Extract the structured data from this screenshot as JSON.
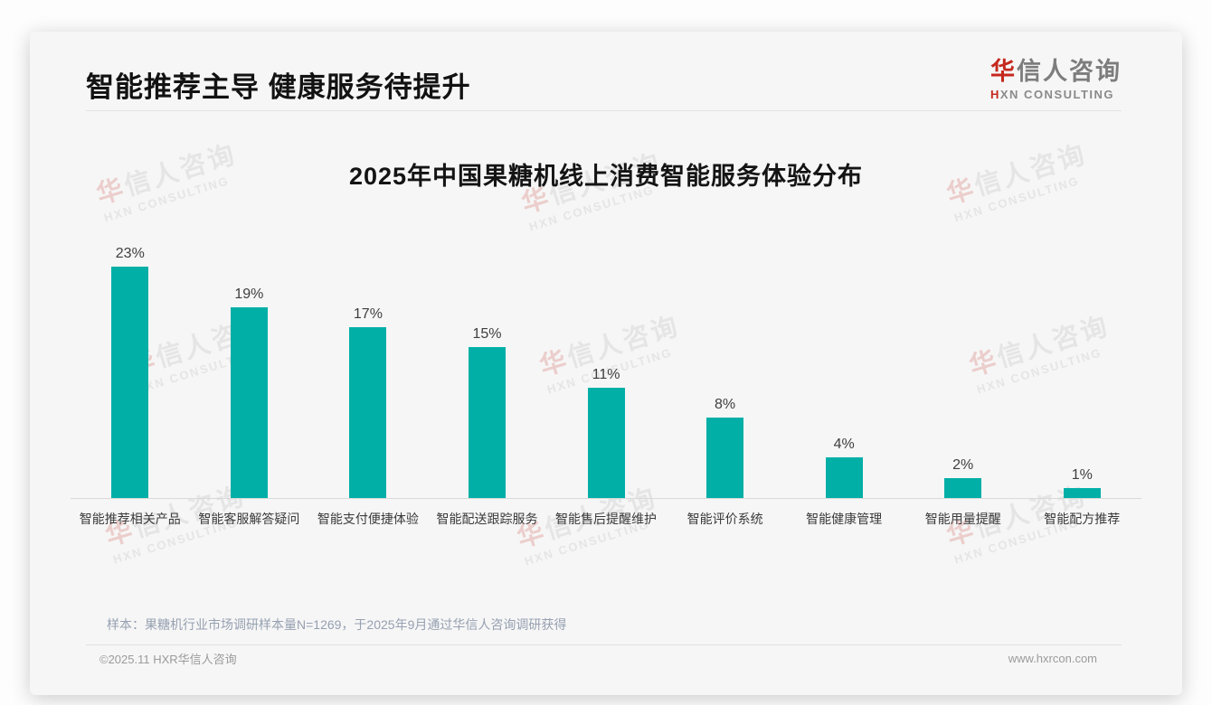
{
  "header": {
    "title": "智能推荐主导 健康服务待提升"
  },
  "logo": {
    "brand_first": "华",
    "brand_rest": "信人咨询",
    "sub_first": "H",
    "sub_rest": "XN CONSULTING"
  },
  "watermark": {
    "first": "华",
    "rest": "信人咨询",
    "line2": "HXN CONSULTING"
  },
  "chart_data": {
    "type": "bar",
    "title": "2025年中国果糖机线上消费智能服务体验分布",
    "categories": [
      "智能推荐相关产品",
      "智能客服解答疑问",
      "智能支付便捷体验",
      "智能配送跟踪服务",
      "智能售后提醒维护",
      "智能评价系统",
      "智能健康管理",
      "智能用量提醒",
      "智能配方推荐"
    ],
    "values": [
      23,
      19,
      17,
      15,
      11,
      8,
      4,
      2,
      1
    ],
    "unit": "%",
    "data_labels": [
      "23%",
      "19%",
      "17%",
      "15%",
      "11%",
      "8%",
      "4%",
      "2%",
      "1%"
    ],
    "bar_color": "#02afa7",
    "xlabel": "",
    "ylabel": "",
    "ylim": [
      0,
      25
    ],
    "grid": false,
    "legend": "none"
  },
  "note": {
    "sample_text": "样本：果糖机行业市场调研样本量N=1269，于2025年9月通过华信人咨询调研获得"
  },
  "footer": {
    "copyright": "©2025.11 HXR华信人咨询",
    "website": "www.hxrcon.com"
  }
}
